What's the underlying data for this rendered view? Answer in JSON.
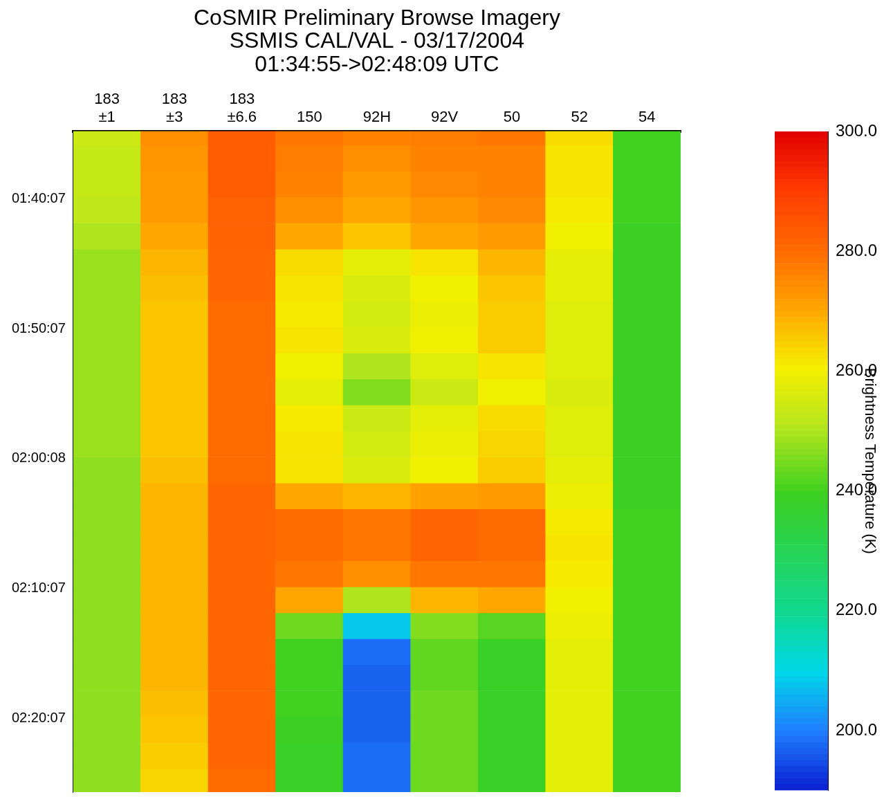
{
  "chart_data": {
    "type": "heatmap",
    "title": [
      "CoSMIR Preliminary Browse Imagery",
      "SSMIS CAL/VAL - 03/17/2004",
      "01:34:55->02:48:09 UTC"
    ],
    "categories": [
      "183 ±1",
      "183 ±3",
      "183 ±6.6",
      "150",
      "92H",
      "92V",
      "50",
      "52",
      "54"
    ],
    "ylim": [
      34.92,
      85.8
    ],
    "yticks": [
      {
        "value": 40.12,
        "label": "01:40:07"
      },
      {
        "value": 50.12,
        "label": "01:50:07"
      },
      {
        "value": 60.13,
        "label": "02:00:08"
      },
      {
        "value": 70.12,
        "label": "02:10:07"
      },
      {
        "value": 80.12,
        "label": "02:20:07"
      }
    ],
    "grid": false,
    "row_edges": [
      34.92,
      36,
      38,
      40,
      42,
      44,
      46,
      48,
      50,
      52,
      54,
      56,
      58,
      60,
      62,
      64,
      66,
      68,
      70,
      72,
      74,
      76,
      78,
      80,
      82,
      84,
      85.8
    ],
    "cells": [
      [
        254,
        274,
        283,
        278,
        276,
        277,
        278,
        263,
        240
      ],
      [
        253,
        273,
        283,
        277,
        274,
        276,
        276,
        262,
        240
      ],
      [
        253,
        272,
        283,
        276,
        272,
        275,
        276,
        262,
        240
      ],
      [
        252,
        272,
        282,
        274,
        270,
        273,
        275,
        261,
        240
      ],
      [
        250,
        270,
        282,
        270,
        266,
        270,
        272,
        260,
        239
      ],
      [
        248,
        268,
        281,
        263,
        258,
        262,
        268,
        258,
        239
      ],
      [
        248,
        267,
        281,
        262,
        256,
        260,
        266,
        258,
        239
      ],
      [
        248,
        266,
        280,
        261,
        255,
        259,
        265,
        257,
        239
      ],
      [
        248,
        266,
        280,
        262,
        256,
        260,
        265,
        257,
        239
      ],
      [
        248,
        266,
        280,
        260,
        250,
        257,
        262,
        257,
        239
      ],
      [
        248,
        266,
        280,
        258,
        246,
        254,
        260,
        256,
        239
      ],
      [
        248,
        266,
        280,
        261,
        254,
        258,
        263,
        257,
        239
      ],
      [
        248,
        266,
        280,
        262,
        255,
        259,
        264,
        257,
        239
      ],
      [
        247,
        267,
        280,
        262,
        256,
        260,
        265,
        258,
        239
      ],
      [
        247,
        268,
        281,
        270,
        268,
        271,
        272,
        259,
        239
      ],
      [
        247,
        268,
        281,
        280,
        278,
        281,
        280,
        261,
        240
      ],
      [
        247,
        268,
        281,
        280,
        278,
        281,
        280,
        262,
        240
      ],
      [
        247,
        268,
        281,
        278,
        274,
        278,
        278,
        261,
        240
      ],
      [
        247,
        268,
        281,
        270,
        250,
        268,
        270,
        260,
        240
      ],
      [
        247,
        268,
        281,
        244,
        208,
        246,
        242,
        259,
        240
      ],
      [
        247,
        268,
        281,
        240,
        198,
        243,
        238,
        258,
        240
      ],
      [
        247,
        268,
        281,
        240,
        197,
        243,
        238,
        258,
        240
      ],
      [
        247,
        267,
        281,
        240,
        197,
        244,
        238,
        258,
        240
      ],
      [
        247,
        266,
        281,
        239,
        197,
        244,
        238,
        258,
        240
      ],
      [
        247,
        265,
        281,
        238,
        198,
        244,
        238,
        258,
        240
      ],
      [
        247,
        264,
        280,
        238,
        198,
        244,
        238,
        258,
        240
      ]
    ],
    "colorbar": {
      "label": "Brightness Temperature (K)",
      "range": [
        190,
        300
      ],
      "ticks": [
        {
          "value": 200,
          "label": "200.0"
        },
        {
          "value": 220,
          "label": "220.0"
        },
        {
          "value": 240,
          "label": "240.0"
        },
        {
          "value": 260,
          "label": "260.0"
        },
        {
          "value": 280,
          "label": "280.0"
        },
        {
          "value": 300,
          "label": "300.0"
        }
      ]
    }
  }
}
